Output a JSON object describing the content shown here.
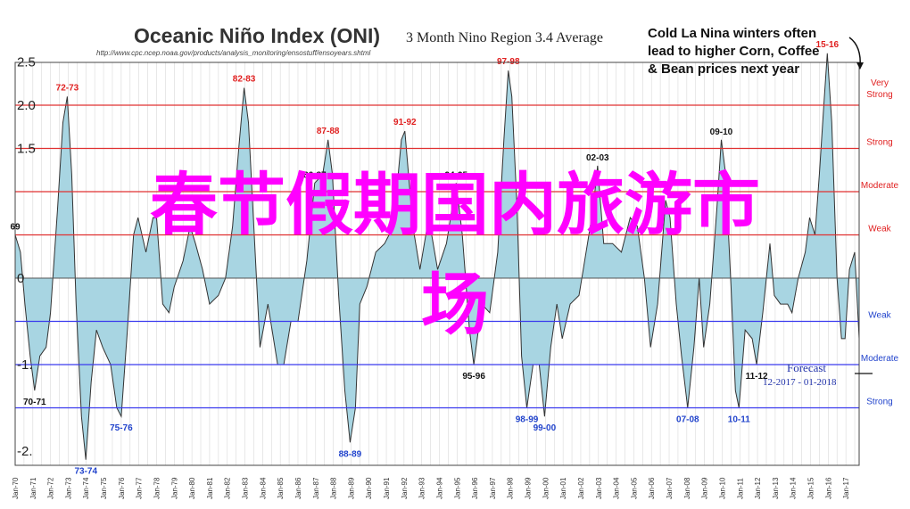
{
  "header": {
    "title": "Oceanic Niño Index (ONI)",
    "subtitle": "3 Month Nino Region 3.4 Average",
    "source_url": "http://www.cpc.ncep.noaa.gov/products/analysis_monitoring/ensostuff/ensoyears.shtml"
  },
  "callout": {
    "line1": "Cold La Nina winters often",
    "line2": "lead to higher Corn, Coffee",
    "line3": "& Bean prices next year"
  },
  "forecast": {
    "label": "Forecast",
    "range": "12-2017 - 01-2018"
  },
  "overlay": {
    "line1": "春节假期国内旅游市",
    "line2": "场"
  },
  "colors": {
    "el_nino_line": "#e03030",
    "la_nina_line": "#3a3aee",
    "fill": "#a8d5e2",
    "outline": "#333333",
    "el_nino_label": "#e02020",
    "la_nina_label": "#2244cc",
    "overlay": "#ff00ff"
  },
  "chart_data": {
    "type": "area",
    "ylim": [
      -2.4,
      2.5
    ],
    "xlim": [
      1970.0,
      2017.75
    ],
    "y_tick_labels": [
      {
        "value": 2.5,
        "label": "2.5"
      },
      {
        "value": 2.0,
        "label": "2.0"
      },
      {
        "value": 1.5,
        "label": "1.5"
      },
      {
        "value": 0,
        "label": "0"
      },
      {
        "value": -1.0,
        "label": "-1."
      },
      {
        "value": -2.0,
        "label": "-2."
      }
    ],
    "thresholds": [
      {
        "value": 2.0,
        "label": "Very Strong",
        "kind": "el_nino"
      },
      {
        "value": 1.5,
        "label": "Strong",
        "kind": "el_nino"
      },
      {
        "value": 1.0,
        "label": "Moderate",
        "kind": "el_nino"
      },
      {
        "value": 0.5,
        "label": "Weak",
        "kind": "el_nino"
      },
      {
        "value": -0.5,
        "label": "Weak",
        "kind": "la_nina"
      },
      {
        "value": -1.0,
        "label": "Moderate",
        "kind": "la_nina"
      },
      {
        "value": -1.5,
        "label": "Strong",
        "kind": "la_nina"
      }
    ],
    "x_tick_labels": [
      "Jan-70",
      "Jan-71",
      "Jan-72",
      "Jan-73",
      "Jan-74",
      "Jan-75",
      "Jan-76",
      "Jan-77",
      "Jan-78",
      "Jan-79",
      "Jan-80",
      "Jan-81",
      "Jan-82",
      "Jan-83",
      "Jan-84",
      "Jan-85",
      "Jan-86",
      "Jan-87",
      "Jan-88",
      "Jan-89",
      "Jan-90",
      "Jan-91",
      "Jan-92",
      "Jan-93",
      "Jan-94",
      "Jan-95",
      "Jan-96",
      "Jan-97",
      "Jan-98",
      "Jan-99",
      "Jan-00",
      "Jan-01",
      "Jan-02",
      "Jan-03",
      "Jan-04",
      "Jan-05",
      "Jan-06",
      "Jan-07",
      "Jan-08",
      "Jan-09",
      "Jan-10",
      "Jan-11",
      "Jan-12",
      "Jan-13",
      "Jan-14",
      "Jan-15",
      "Jan-16",
      "Jan-17"
    ],
    "series": [
      {
        "points": [
          [
            1970.0,
            0.5
          ],
          [
            1970.3,
            0.3
          ],
          [
            1970.55,
            -0.3
          ],
          [
            1970.85,
            -0.9
          ],
          [
            1971.1,
            -1.3
          ],
          [
            1971.4,
            -0.9
          ],
          [
            1971.75,
            -0.8
          ],
          [
            1972.0,
            -0.4
          ],
          [
            1972.4,
            0.8
          ],
          [
            1972.7,
            1.8
          ],
          [
            1972.95,
            2.1
          ],
          [
            1973.2,
            1.2
          ],
          [
            1973.45,
            -0.3
          ],
          [
            1973.75,
            -1.6
          ],
          [
            1974.0,
            -2.1
          ],
          [
            1974.3,
            -1.2
          ],
          [
            1974.6,
            -0.6
          ],
          [
            1974.95,
            -0.8
          ],
          [
            1975.4,
            -1.0
          ],
          [
            1975.75,
            -1.5
          ],
          [
            1976.0,
            -1.6
          ],
          [
            1976.35,
            -0.6
          ],
          [
            1976.7,
            0.5
          ],
          [
            1976.95,
            0.7
          ],
          [
            1977.4,
            0.3
          ],
          [
            1977.8,
            0.7
          ],
          [
            1978.0,
            0.7
          ],
          [
            1978.35,
            -0.3
          ],
          [
            1978.7,
            -0.4
          ],
          [
            1979.0,
            -0.1
          ],
          [
            1979.5,
            0.2
          ],
          [
            1979.9,
            0.6
          ],
          [
            1980.2,
            0.4
          ],
          [
            1980.6,
            0.1
          ],
          [
            1981.0,
            -0.3
          ],
          [
            1981.5,
            -0.2
          ],
          [
            1981.9,
            0.0
          ],
          [
            1982.3,
            0.6
          ],
          [
            1982.65,
            1.5
          ],
          [
            1982.95,
            2.2
          ],
          [
            1983.2,
            1.8
          ],
          [
            1983.5,
            0.6
          ],
          [
            1983.85,
            -0.8
          ],
          [
            1984.3,
            -0.3
          ],
          [
            1984.85,
            -1.0
          ],
          [
            1985.2,
            -1.0
          ],
          [
            1985.6,
            -0.5
          ],
          [
            1986.0,
            -0.5
          ],
          [
            1986.5,
            0.2
          ],
          [
            1986.95,
            1.1
          ],
          [
            1987.4,
            1.2
          ],
          [
            1987.7,
            1.6
          ],
          [
            1987.95,
            1.2
          ],
          [
            1988.3,
            -0.2
          ],
          [
            1988.65,
            -1.3
          ],
          [
            1988.95,
            -1.9
          ],
          [
            1989.25,
            -1.5
          ],
          [
            1989.5,
            -0.3
          ],
          [
            1989.9,
            -0.1
          ],
          [
            1990.4,
            0.3
          ],
          [
            1990.9,
            0.4
          ],
          [
            1991.4,
            0.6
          ],
          [
            1991.85,
            1.6
          ],
          [
            1992.05,
            1.7
          ],
          [
            1992.5,
            0.6
          ],
          [
            1992.9,
            0.1
          ],
          [
            1993.4,
            0.7
          ],
          [
            1993.9,
            0.1
          ],
          [
            1994.4,
            0.4
          ],
          [
            1994.95,
            1.1
          ],
          [
            1995.3,
            0.5
          ],
          [
            1995.7,
            -0.6
          ],
          [
            1995.95,
            -1.0
          ],
          [
            1996.4,
            -0.3
          ],
          [
            1996.85,
            -0.4
          ],
          [
            1997.3,
            0.3
          ],
          [
            1997.65,
            1.6
          ],
          [
            1997.9,
            2.4
          ],
          [
            1998.1,
            2.1
          ],
          [
            1998.4,
            0.8
          ],
          [
            1998.65,
            -0.9
          ],
          [
            1998.95,
            -1.5
          ],
          [
            1999.3,
            -1.0
          ],
          [
            1999.65,
            -1.0
          ],
          [
            1999.95,
            -1.6
          ],
          [
            2000.3,
            -0.8
          ],
          [
            2000.65,
            -0.3
          ],
          [
            2000.95,
            -0.7
          ],
          [
            2001.4,
            -0.3
          ],
          [
            2001.9,
            -0.2
          ],
          [
            2002.3,
            0.3
          ],
          [
            2002.7,
            0.8
          ],
          [
            2002.95,
            1.3
          ],
          [
            2003.3,
            0.4
          ],
          [
            2003.8,
            0.4
          ],
          [
            2004.3,
            0.3
          ],
          [
            2004.8,
            0.7
          ],
          [
            2005.2,
            0.6
          ],
          [
            2005.6,
            0.0
          ],
          [
            2005.95,
            -0.8
          ],
          [
            2006.35,
            -0.3
          ],
          [
            2006.8,
            0.9
          ],
          [
            2007.05,
            0.7
          ],
          [
            2007.4,
            -0.3
          ],
          [
            2007.7,
            -0.9
          ],
          [
            2008.05,
            -1.5
          ],
          [
            2008.4,
            -0.8
          ],
          [
            2008.7,
            0.0
          ],
          [
            2008.95,
            -0.8
          ],
          [
            2009.3,
            -0.3
          ],
          [
            2009.7,
            0.8
          ],
          [
            2009.95,
            1.6
          ],
          [
            2010.2,
            1.2
          ],
          [
            2010.5,
            -0.1
          ],
          [
            2010.75,
            -1.3
          ],
          [
            2010.95,
            -1.5
          ],
          [
            2011.3,
            -0.6
          ],
          [
            2011.7,
            -0.7
          ],
          [
            2011.95,
            -1.0
          ],
          [
            2012.3,
            -0.4
          ],
          [
            2012.7,
            0.4
          ],
          [
            2012.95,
            -0.2
          ],
          [
            2013.3,
            -0.3
          ],
          [
            2013.7,
            -0.3
          ],
          [
            2013.95,
            -0.4
          ],
          [
            2014.3,
            0.0
          ],
          [
            2014.7,
            0.3
          ],
          [
            2014.95,
            0.7
          ],
          [
            2015.25,
            0.5
          ],
          [
            2015.5,
            1.2
          ],
          [
            2015.75,
            2.0
          ],
          [
            2015.95,
            2.6
          ],
          [
            2016.2,
            1.8
          ],
          [
            2016.5,
            0.0
          ],
          [
            2016.75,
            -0.7
          ],
          [
            2016.95,
            -0.7
          ],
          [
            2017.2,
            0.1
          ],
          [
            2017.5,
            0.3
          ],
          [
            2017.75,
            -0.7
          ]
        ]
      }
    ],
    "annotations": [
      {
        "label": "72-73",
        "x": 1972.95,
        "y": 2.1,
        "kind": "el_nino"
      },
      {
        "label": "82-83",
        "x": 1982.95,
        "y": 2.2,
        "kind": "el_nino"
      },
      {
        "label": "87-88",
        "x": 1987.7,
        "y": 1.6,
        "kind": "el_nino"
      },
      {
        "label": "91-92",
        "x": 1992.05,
        "y": 1.7,
        "kind": "el_nino"
      },
      {
        "label": "97-98",
        "x": 1997.9,
        "y": 2.4,
        "kind": "el_nino"
      },
      {
        "label": "15-16",
        "x": 2015.95,
        "y": 2.6,
        "kind": "el_nino"
      },
      {
        "label": "02-03",
        "x": 2002.95,
        "y": 1.3,
        "kind": "neutral"
      },
      {
        "label": "09-10",
        "x": 2009.95,
        "y": 1.6,
        "kind": "neutral"
      },
      {
        "label": "86-87",
        "x": 1986.95,
        "y": 1.1,
        "kind": "neutral"
      },
      {
        "label": "94-95",
        "x": 1994.95,
        "y": 1.1,
        "kind": "neutral"
      },
      {
        "label": "69",
        "x": 1970.0,
        "y": 0.5,
        "kind": "neutral"
      },
      {
        "label": "70-71",
        "x": 1971.1,
        "y": -1.3,
        "kind": "neutral"
      },
      {
        "label": "95-96",
        "x": 1995.95,
        "y": -1.0,
        "kind": "neutral"
      },
      {
        "label": "11-12",
        "x": 2011.95,
        "y": -1.0,
        "kind": "neutral"
      },
      {
        "label": "73-74",
        "x": 1974.0,
        "y": -2.1,
        "kind": "la_nina"
      },
      {
        "label": "75-76",
        "x": 1976.0,
        "y": -1.6,
        "kind": "la_nina"
      },
      {
        "label": "88-89",
        "x": 1988.95,
        "y": -1.9,
        "kind": "la_nina"
      },
      {
        "label": "98-99",
        "x": 1998.95,
        "y": -1.5,
        "kind": "la_nina"
      },
      {
        "label": "99-00",
        "x": 1999.95,
        "y": -1.6,
        "kind": "la_nina"
      },
      {
        "label": "07-08",
        "x": 2008.05,
        "y": -1.5,
        "kind": "la_nina"
      },
      {
        "label": "10-11",
        "x": 2010.95,
        "y": -1.5,
        "kind": "la_nina"
      }
    ]
  }
}
